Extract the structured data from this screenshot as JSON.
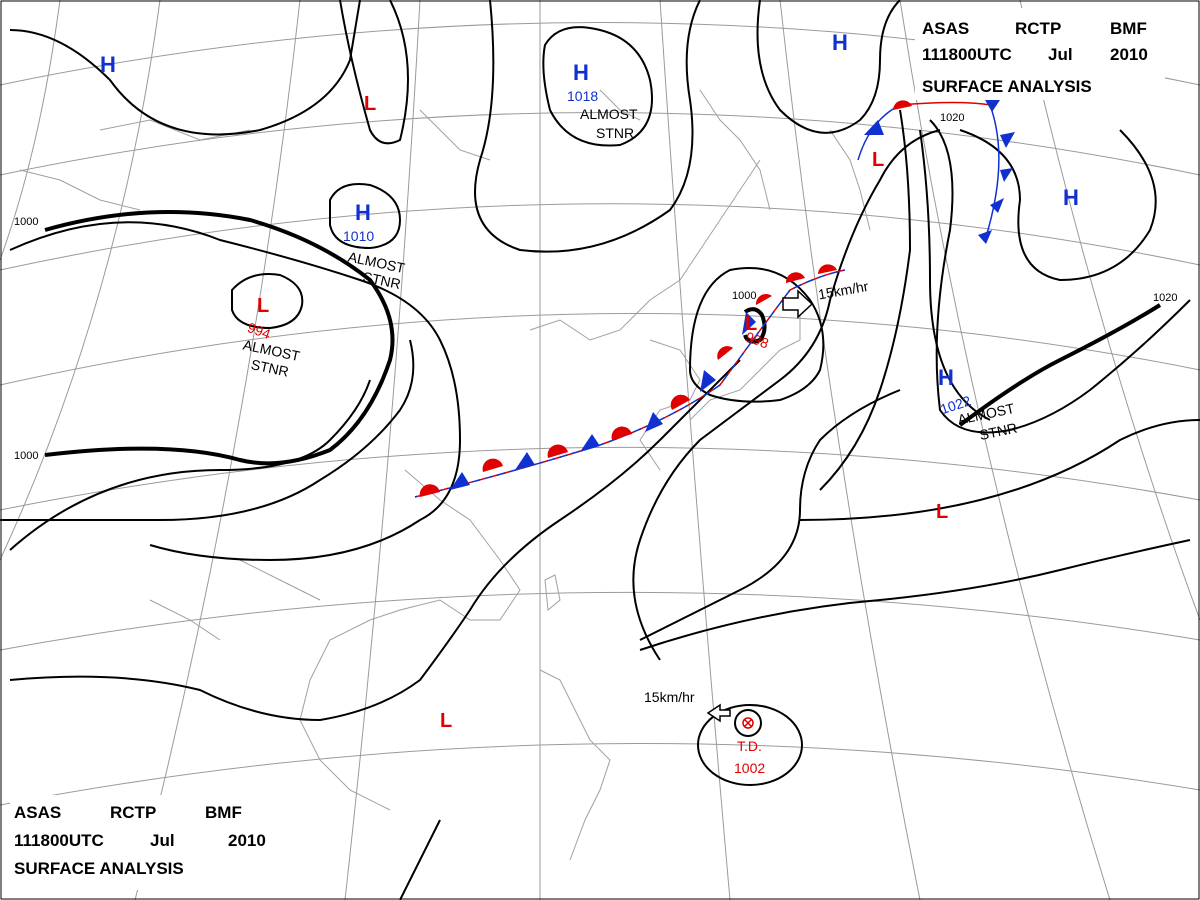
{
  "header_top": {
    "line1": [
      "ASAS",
      "RCTP",
      "BMF"
    ],
    "line2": [
      "111800UTC",
      "Jul",
      "2010"
    ],
    "line3": "SURFACE ANALYSIS"
  },
  "header_bottom": {
    "line1": [
      "ASAS",
      "RCTP",
      "BMF"
    ],
    "line2": [
      "111800UTC",
      "Jul",
      "2010"
    ],
    "line3": "SURFACE ANALYSIS"
  },
  "highs": [
    {
      "id": "h-nw",
      "symbol": "H",
      "pressure": ""
    },
    {
      "id": "h-n",
      "symbol": "H",
      "pressure": "1018",
      "note": "ALMOST STNR"
    },
    {
      "id": "h-ne",
      "symbol": "H",
      "pressure": ""
    },
    {
      "id": "h-mongolia",
      "symbol": "H",
      "pressure": "1010",
      "note": "ALMOST STNR"
    },
    {
      "id": "h-e",
      "symbol": "H",
      "pressure": ""
    },
    {
      "id": "h-pacific",
      "symbol": "H",
      "pressure": "1022",
      "note": "ALMOST STNR"
    }
  ],
  "lows": [
    {
      "id": "l-n",
      "symbol": "L",
      "pressure": ""
    },
    {
      "id": "l-kamchatka",
      "symbol": "L",
      "pressure": ""
    },
    {
      "id": "l-west",
      "symbol": "L",
      "pressure": "994",
      "note": "ALMOST STNR"
    },
    {
      "id": "l-sea-of-japan",
      "symbol": "L",
      "pressure": "998",
      "motion": "15km/hr"
    },
    {
      "id": "l-pacific",
      "symbol": "L",
      "pressure": ""
    },
    {
      "id": "l-south-china",
      "symbol": "L",
      "pressure": ""
    }
  ],
  "tropical_depression": {
    "label": "T.D.",
    "pressure": "1002",
    "motion": "15km/hr"
  },
  "isobar_labels": [
    "1000",
    "1000",
    "1000",
    "1020",
    "1020"
  ],
  "notes": {
    "almost_stnr_1": "ALMOST",
    "almost_stnr_2": "STNR"
  },
  "colors": {
    "high": "#1030d0",
    "low": "#e00000",
    "isobar": "#000000",
    "grid": "#888888",
    "coast": "#999999"
  }
}
